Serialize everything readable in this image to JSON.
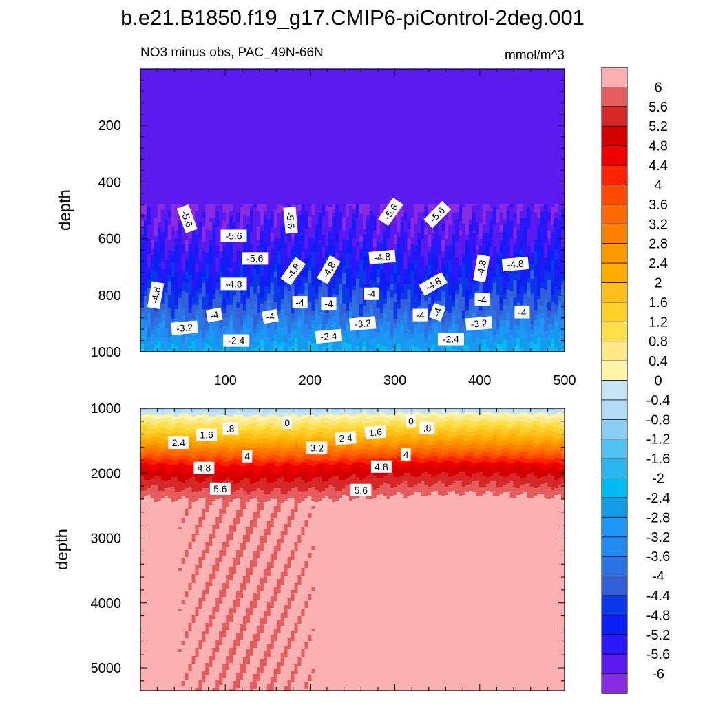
{
  "chart_data": {
    "type": "contour",
    "title": "b.e21.B1850.f19_g17.CMIP6-piControl-2deg.001",
    "panels": [
      {
        "name": "upper",
        "left_title": "NO3 minus obs, PAC_49N-66N",
        "right_title": "mmol/m^3",
        "xlim": [
          0,
          500
        ],
        "ylim": [
          1000,
          0
        ],
        "ylabel": "depth",
        "xticks": [
          100,
          200,
          300,
          400,
          500
        ],
        "xtick_labels": [
          "100",
          "200",
          "300",
          "400",
          "500"
        ],
        "yticks": [
          200,
          400,
          600,
          800,
          1000
        ],
        "ytick_labels": [
          "200",
          "400",
          "600",
          "800",
          "1000"
        ],
        "profile": [
          {
            "depth": 0,
            "value": -6
          },
          {
            "depth": 500,
            "value": -6
          },
          {
            "depth": 520,
            "value": -5.8
          },
          {
            "depth": 600,
            "value": -5.6
          },
          {
            "depth": 680,
            "value": -5.2
          },
          {
            "depth": 760,
            "value": -4.8
          },
          {
            "depth": 840,
            "value": -4.2
          },
          {
            "depth": 900,
            "value": -3.6
          },
          {
            "depth": 950,
            "value": -3.0
          },
          {
            "depth": 1000,
            "value": -2.2
          }
        ],
        "contour_labels": [
          {
            "text": "-5.6",
            "x": 55,
            "depth": 530,
            "rot": 70
          },
          {
            "text": "-5.6",
            "x": 110,
            "depth": 590,
            "rot": 0
          },
          {
            "text": "-5.6",
            "x": 177,
            "depth": 535,
            "rot": 85
          },
          {
            "text": "-5.6",
            "x": 135,
            "depth": 670,
            "rot": 0
          },
          {
            "text": "-5.6",
            "x": 295,
            "depth": 505,
            "rot": -55
          },
          {
            "text": "-5.6",
            "x": 350,
            "depth": 515,
            "rot": -45
          },
          {
            "text": "-4.8",
            "x": 18,
            "depth": 800,
            "rot": -80
          },
          {
            "text": "-4.8",
            "x": 110,
            "depth": 760,
            "rot": 0
          },
          {
            "text": "-4.8",
            "x": 180,
            "depth": 715,
            "rot": -55
          },
          {
            "text": "-4.8",
            "x": 222,
            "depth": 710,
            "rot": -60
          },
          {
            "text": "-4.8",
            "x": 285,
            "depth": 665,
            "rot": -5
          },
          {
            "text": "-4.8",
            "x": 345,
            "depth": 760,
            "rot": -30
          },
          {
            "text": "-4.8",
            "x": 402,
            "depth": 705,
            "rot": -80
          },
          {
            "text": "-4.8",
            "x": 442,
            "depth": 690,
            "rot": -5
          },
          {
            "text": "-4",
            "x": 87,
            "depth": 870,
            "rot": -10
          },
          {
            "text": "-4",
            "x": 153,
            "depth": 875,
            "rot": -10
          },
          {
            "text": "-4",
            "x": 188,
            "depth": 825,
            "rot": 0
          },
          {
            "text": "-4",
            "x": 222,
            "depth": 830,
            "rot": 0
          },
          {
            "text": "-4",
            "x": 272,
            "depth": 795,
            "rot": 0
          },
          {
            "text": "-4",
            "x": 330,
            "depth": 870,
            "rot": 0
          },
          {
            "text": "-4",
            "x": 350,
            "depth": 860,
            "rot": -70
          },
          {
            "text": "-4",
            "x": 403,
            "depth": 815,
            "rot": 0
          },
          {
            "text": "-4",
            "x": 450,
            "depth": 860,
            "rot": 0
          },
          {
            "text": "-3.2",
            "x": 52,
            "depth": 915,
            "rot": -5
          },
          {
            "text": "-3.2",
            "x": 262,
            "depth": 900,
            "rot": -5
          },
          {
            "text": "-3.2",
            "x": 399,
            "depth": 900,
            "rot": -5
          },
          {
            "text": "-2.4",
            "x": 113,
            "depth": 960,
            "rot": 0
          },
          {
            "text": "-2.4",
            "x": 222,
            "depth": 945,
            "rot": -5
          },
          {
            "text": "-2.4",
            "x": 366,
            "depth": 955,
            "rot": 0
          }
        ]
      },
      {
        "name": "lower",
        "xlim": [
          0,
          500
        ],
        "ylim": [
          5350,
          1000
        ],
        "ylabel": "depth",
        "yticks": [
          1000,
          2000,
          3000,
          4000,
          5000
        ],
        "ytick_labels": [
          "1000",
          "2000",
          "3000",
          "4000",
          "5000"
        ],
        "profile": [
          {
            "depth": 1000,
            "value": -0.9
          },
          {
            "depth": 1050,
            "value": -0.3
          },
          {
            "depth": 1150,
            "value": 0.4
          },
          {
            "depth": 1300,
            "value": 1.2
          },
          {
            "depth": 1450,
            "value": 2.0
          },
          {
            "depth": 1600,
            "value": 2.9
          },
          {
            "depth": 1750,
            "value": 3.8
          },
          {
            "depth": 1900,
            "value": 4.7
          },
          {
            "depth": 2100,
            "value": 5.3
          },
          {
            "depth": 2300,
            "value": 5.8
          },
          {
            "depth": 2450,
            "value": 6.2
          },
          {
            "depth": 5350,
            "value": 6.2
          }
        ],
        "contour_labels": [
          {
            "text": "0",
            "x": 173,
            "depth": 1225,
            "rot": 0
          },
          {
            "text": "0",
            "x": 319,
            "depth": 1195,
            "rot": 0
          },
          {
            "text": ".8",
            "x": 106,
            "depth": 1315,
            "rot": 0
          },
          {
            "text": ".8",
            "x": 338,
            "depth": 1305,
            "rot": 0
          },
          {
            "text": "1.6",
            "x": 78,
            "depth": 1410,
            "rot": 0
          },
          {
            "text": "1.6",
            "x": 277,
            "depth": 1370,
            "rot": -5
          },
          {
            "text": "2.4",
            "x": 45,
            "depth": 1530,
            "rot": 0
          },
          {
            "text": "2.4",
            "x": 242,
            "depth": 1460,
            "rot": -5
          },
          {
            "text": "3.2",
            "x": 208,
            "depth": 1610,
            "rot": 0
          },
          {
            "text": "4",
            "x": 126,
            "depth": 1740,
            "rot": 0
          },
          {
            "text": "4",
            "x": 313,
            "depth": 1710,
            "rot": 0
          },
          {
            "text": "4.8",
            "x": 75,
            "depth": 1920,
            "rot": 0
          },
          {
            "text": "4.8",
            "x": 284,
            "depth": 1900,
            "rot": 0
          },
          {
            "text": "5.6",
            "x": 94,
            "depth": 2240,
            "rot": 0
          },
          {
            "text": "5.6",
            "x": 260,
            "depth": 2260,
            "rot": 0
          }
        ]
      }
    ],
    "colorbar": {
      "levels": [
        "-6",
        "-5.6",
        "-5.2",
        "-4.8",
        "-4.4",
        "-4",
        "-3.6",
        "-3.2",
        "-2.8",
        "-2.4",
        "-2",
        "-1.6",
        "-1.2",
        "-0.8",
        "-0.4",
        "0",
        "0.4",
        "0.8",
        "1.2",
        "1.6",
        "2",
        "2.4",
        "2.8",
        "3.2",
        "3.6",
        "4",
        "4.4",
        "4.8",
        "5.2",
        "5.6",
        "6"
      ],
      "colors": [
        "#8A2BE2",
        "#5B1BEF",
        "#2B17F8",
        "#0C20F5",
        "#0B38E8",
        "#3360D8",
        "#2C72E0",
        "#2289F2",
        "#1F98F8",
        "#129CE8",
        "#00BCF5",
        "#2BB5EC",
        "#52C0F1",
        "#8CCDF3",
        "#B2DCF6",
        "#C8E4F4",
        "#FFF5A8",
        "#FEE88A",
        "#FFE04A",
        "#FFD02A",
        "#FFBF1A",
        "#FFAE00",
        "#FF9900",
        "#FF8000",
        "#FF6A00",
        "#FF4A00",
        "#FF2200",
        "#EE0000",
        "#D40000",
        "#D62828",
        "#E45C5C",
        "#FBB1B1"
      ]
    }
  }
}
